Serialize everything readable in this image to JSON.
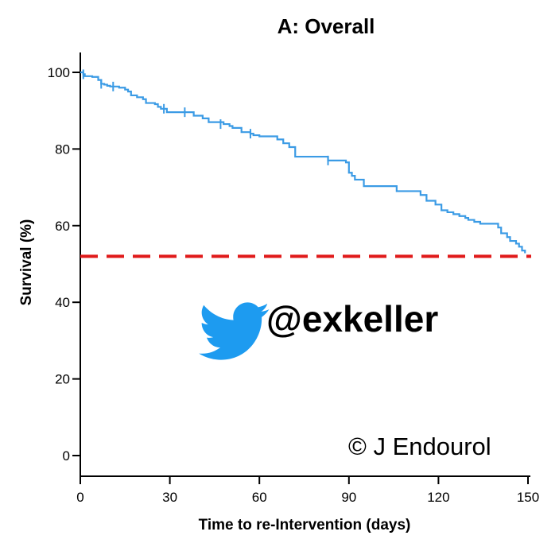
{
  "chart_data": {
    "type": "line",
    "title": "A: Overall",
    "xlabel": "Time to re-Intervention (days)",
    "ylabel": "Survival (%)",
    "xlim": [
      0,
      150
    ],
    "ylim": [
      0,
      100
    ],
    "xticks": [
      0,
      30,
      60,
      90,
      120,
      150
    ],
    "yticks": [
      0,
      20,
      40,
      60,
      80,
      100
    ],
    "grid": false,
    "series": [
      {
        "color": "#3b9be5",
        "step": true,
        "x": [
          0,
          1,
          1.5,
          4,
          6,
          7,
          8,
          9,
          10,
          13,
          15,
          16,
          17,
          19,
          21,
          22,
          25,
          26,
          27,
          29,
          38,
          41,
          43,
          48,
          50,
          51,
          54,
          57,
          58,
          60,
          66,
          68,
          70,
          72,
          83,
          89,
          90,
          91,
          92,
          95,
          106,
          114,
          116,
          119,
          121,
          123,
          125,
          127,
          129,
          130,
          132,
          134,
          140,
          141,
          143,
          144,
          146,
          147,
          148,
          149
        ],
        "y": [
          100,
          99.5,
          99,
          98.8,
          98,
          97,
          96.8,
          96.5,
          96.3,
          96,
          95.5,
          95,
          94,
          93.5,
          93,
          92,
          91.7,
          91,
          90.5,
          89.6,
          88.7,
          88,
          87,
          86.5,
          86,
          85.5,
          84.4,
          84,
          83.6,
          83.3,
          82.5,
          81.5,
          80.5,
          78,
          77,
          76.5,
          73.8,
          73,
          72,
          70.3,
          69,
          68,
          66.5,
          65.5,
          64,
          63.5,
          63,
          62.5,
          62,
          61.5,
          61,
          60.5,
          59.5,
          58,
          57,
          56,
          55.3,
          54.5,
          53.5,
          52.8
        ]
      },
      {
        "name": "reference",
        "color": "#e01a1a",
        "dashed": true,
        "x": [
          0,
          150
        ],
        "y": [
          52,
          52
        ]
      }
    ],
    "censor_marks": [
      {
        "x": 1,
        "y": 99.5
      },
      {
        "x": 7,
        "y": 97
      },
      {
        "x": 11,
        "y": 96.3
      },
      {
        "x": 28,
        "y": 90.5
      },
      {
        "x": 35,
        "y": 89.6
      },
      {
        "x": 47,
        "y": 86.5
      },
      {
        "x": 57,
        "y": 84
      },
      {
        "x": 83,
        "y": 77
      }
    ]
  },
  "overlay": {
    "handle": "@exkeller",
    "icon": "twitter-bird-icon",
    "icon_color": "#1d9bf0",
    "copyright": "© J Endourol"
  }
}
